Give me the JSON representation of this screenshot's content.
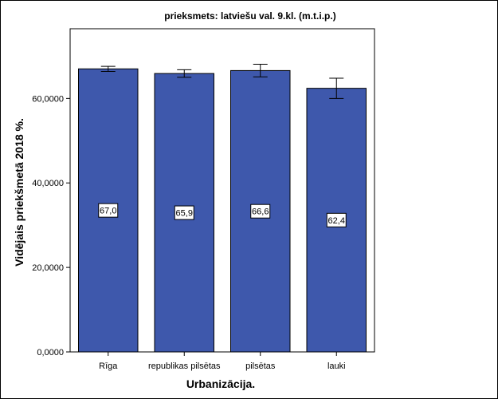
{
  "chart_data": {
    "type": "bar",
    "title": "prieksmets: latviešu val. 9.kl. (m.t.i.p.)",
    "xlabel": "Urbanizācija.",
    "ylabel": "Vidējais priekšmetā 2018 %.",
    "categories": [
      "Rīga",
      "republikas pilsētas",
      "pilsētas",
      "lauki"
    ],
    "values": [
      67.0,
      65.9,
      66.6,
      62.4
    ],
    "value_labels": [
      "67,0",
      "65,9",
      "66,6",
      "62,4"
    ],
    "error_bars": [
      {
        "low": 66.4,
        "high": 67.6
      },
      {
        "low": 65.0,
        "high": 66.8
      },
      {
        "low": 65.1,
        "high": 68.1
      },
      {
        "low": 60.0,
        "high": 64.8
      }
    ],
    "yticks": [
      0,
      20,
      40,
      60
    ],
    "ytick_labels": [
      "0,0000",
      "20,0000",
      "40,0000",
      "60,0000"
    ],
    "ylim": [
      0,
      76.5
    ],
    "grid": false,
    "colors": {
      "bar": "#3e58ac",
      "plot_background": "#ffffff",
      "axis": "#000000"
    }
  }
}
